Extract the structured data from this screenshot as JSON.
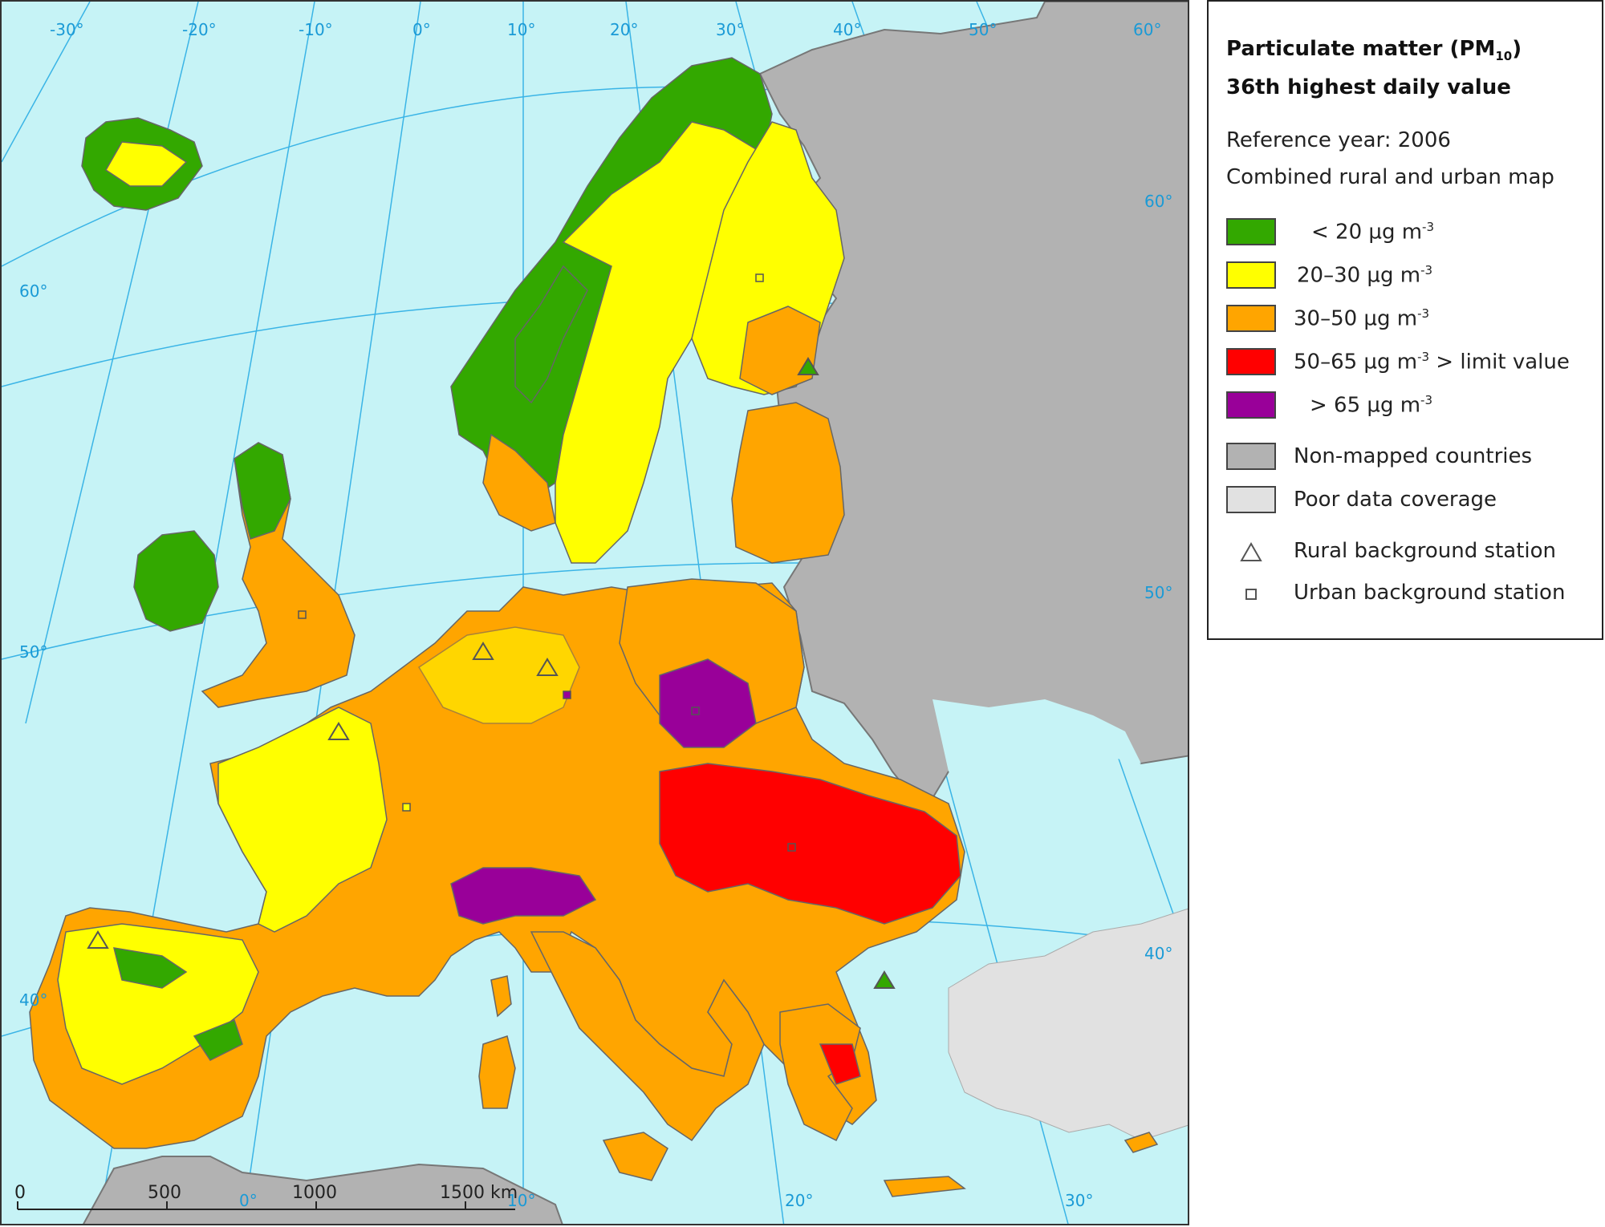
{
  "legend": {
    "title_main": "Particulate matter (PM",
    "title_sub": "10",
    "title_close": ")",
    "title_line2": "36th highest daily value",
    "reference_year_label": "Reference year:",
    "reference_year": "2006",
    "map_type": "Combined rural and urban map",
    "classes": [
      {
        "color": "#33a800",
        "prefix": "< 20 µg m",
        "exp": "-3",
        "suffix": ""
      },
      {
        "color": "#ffff00",
        "prefix": "20–30 µg m",
        "exp": "-3",
        "suffix": ""
      },
      {
        "color": "#ffa500",
        "prefix": "30–50 µg m",
        "exp": "-3",
        "suffix": ""
      },
      {
        "color": "#ff0000",
        "prefix": "50–65 µg m",
        "exp": "-3",
        "suffix": " > limit value"
      },
      {
        "color": "#990099",
        "prefix": "> 65 µg m",
        "exp": "-3",
        "suffix": ""
      }
    ],
    "non_mapped": {
      "color": "#b2b2b2",
      "label": "Non-mapped countries"
    },
    "poor_data": {
      "color": "#e1e1e1",
      "label": "Poor data coverage"
    },
    "rural_station_label": "Rural background station",
    "urban_station_label": "Urban background station"
  },
  "graticule": {
    "top_longitudes": [
      "-30°",
      "-20°",
      "-10°",
      "0°",
      "10°",
      "20°",
      "30°",
      "40°",
      "50°",
      "60°"
    ],
    "bottom_longitudes": [
      "0°",
      "10°",
      "20°",
      "30°"
    ],
    "left_latitudes": [
      "60°",
      "50°",
      "40°"
    ],
    "right_latitudes": [
      "60°",
      "50°",
      "40°"
    ]
  },
  "scale_bar": {
    "ticks": [
      "0",
      "500",
      "1000",
      "1500 km"
    ]
  }
}
